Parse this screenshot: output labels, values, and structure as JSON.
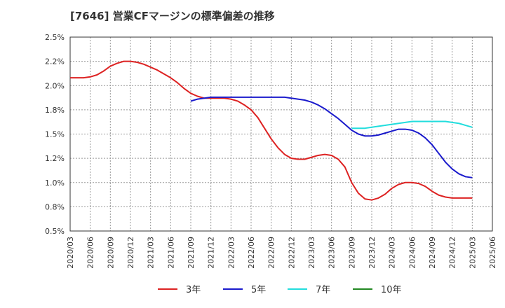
{
  "chart_data": {
    "type": "line",
    "title": "[7646]  営業CFマージンの標準偏差の推移",
    "xlabel": "",
    "ylabel": "",
    "ylim": [
      0.5,
      2.5
    ],
    "y_ticks": [
      0.5,
      0.75,
      1.0,
      1.25,
      1.5,
      1.75,
      2.0,
      2.25,
      2.5
    ],
    "y_tick_labels": [
      "0.5%",
      "0.8%",
      "1.0%",
      "1.2%",
      "1.5%",
      "1.8%",
      "2.0%",
      "2.2%",
      "2.5%"
    ],
    "x_tick_labels": [
      "2020/03",
      "2020/06",
      "2020/09",
      "2020/12",
      "2021/03",
      "2021/06",
      "2021/09",
      "2021/12",
      "2022/03",
      "2022/06",
      "2022/09",
      "2022/12",
      "2023/03",
      "2023/06",
      "2023/09",
      "2023/12",
      "2024/03",
      "2024/06",
      "2024/09",
      "2024/12",
      "2025/03",
      "2025/06"
    ],
    "grid": true,
    "legend_position": "bottom",
    "series": [
      {
        "name": "3年",
        "color": "#dd2222",
        "points": [
          [
            "2020/03",
            2.08
          ],
          [
            "2020/04",
            2.08
          ],
          [
            "2020/05",
            2.08
          ],
          [
            "2020/06",
            2.09
          ],
          [
            "2020/07",
            2.11
          ],
          [
            "2020/08",
            2.15
          ],
          [
            "2020/09",
            2.2
          ],
          [
            "2020/10",
            2.23
          ],
          [
            "2020/11",
            2.25
          ],
          [
            "2020/12",
            2.25
          ],
          [
            "2021/01",
            2.24
          ],
          [
            "2021/02",
            2.22
          ],
          [
            "2021/03",
            2.19
          ],
          [
            "2021/04",
            2.16
          ],
          [
            "2021/05",
            2.12
          ],
          [
            "2021/06",
            2.08
          ],
          [
            "2021/07",
            2.03
          ],
          [
            "2021/08",
            1.97
          ],
          [
            "2021/09",
            1.92
          ],
          [
            "2021/10",
            1.89
          ],
          [
            "2021/11",
            1.87
          ],
          [
            "2021/12",
            1.87
          ],
          [
            "2022/01",
            1.87
          ],
          [
            "2022/02",
            1.87
          ],
          [
            "2022/03",
            1.86
          ],
          [
            "2022/04",
            1.84
          ],
          [
            "2022/05",
            1.8
          ],
          [
            "2022/06",
            1.75
          ],
          [
            "2022/07",
            1.67
          ],
          [
            "2022/08",
            1.56
          ],
          [
            "2022/09",
            1.45
          ],
          [
            "2022/10",
            1.36
          ],
          [
            "2022/11",
            1.29
          ],
          [
            "2022/12",
            1.25
          ],
          [
            "2023/01",
            1.24
          ],
          [
            "2023/02",
            1.24
          ],
          [
            "2023/03",
            1.26
          ],
          [
            "2023/04",
            1.28
          ],
          [
            "2023/05",
            1.29
          ],
          [
            "2023/06",
            1.28
          ],
          [
            "2023/07",
            1.24
          ],
          [
            "2023/08",
            1.16
          ],
          [
            "2023/09",
            1.0
          ],
          [
            "2023/10",
            0.89
          ],
          [
            "2023/11",
            0.83
          ],
          [
            "2023/12",
            0.82
          ],
          [
            "2024/01",
            0.84
          ],
          [
            "2024/02",
            0.88
          ],
          [
            "2024/03",
            0.94
          ],
          [
            "2024/04",
            0.98
          ],
          [
            "2024/05",
            1.0
          ],
          [
            "2024/06",
            1.0
          ],
          [
            "2024/07",
            0.99
          ],
          [
            "2024/08",
            0.96
          ],
          [
            "2024/09",
            0.91
          ],
          [
            "2024/10",
            0.87
          ],
          [
            "2024/11",
            0.85
          ],
          [
            "2024/12",
            0.84
          ],
          [
            "2025/01",
            0.84
          ],
          [
            "2025/02",
            0.84
          ],
          [
            "2025/03",
            0.84
          ]
        ]
      },
      {
        "name": "5年",
        "color": "#1a1acc",
        "points": [
          [
            "2021/09",
            1.84
          ],
          [
            "2021/10",
            1.86
          ],
          [
            "2021/11",
            1.87
          ],
          [
            "2021/12",
            1.88
          ],
          [
            "2022/01",
            1.88
          ],
          [
            "2022/02",
            1.88
          ],
          [
            "2022/03",
            1.88
          ],
          [
            "2022/04",
            1.88
          ],
          [
            "2022/05",
            1.88
          ],
          [
            "2022/06",
            1.88
          ],
          [
            "2022/07",
            1.88
          ],
          [
            "2022/08",
            1.88
          ],
          [
            "2022/09",
            1.88
          ],
          [
            "2022/10",
            1.88
          ],
          [
            "2022/11",
            1.88
          ],
          [
            "2022/12",
            1.87
          ],
          [
            "2023/01",
            1.86
          ],
          [
            "2023/02",
            1.85
          ],
          [
            "2023/03",
            1.83
          ],
          [
            "2023/04",
            1.8
          ],
          [
            "2023/05",
            1.76
          ],
          [
            "2023/06",
            1.71
          ],
          [
            "2023/07",
            1.66
          ],
          [
            "2023/08",
            1.6
          ],
          [
            "2023/09",
            1.54
          ],
          [
            "2023/10",
            1.5
          ],
          [
            "2023/11",
            1.48
          ],
          [
            "2023/12",
            1.48
          ],
          [
            "2024/01",
            1.49
          ],
          [
            "2024/02",
            1.51
          ],
          [
            "2024/03",
            1.53
          ],
          [
            "2024/04",
            1.55
          ],
          [
            "2024/05",
            1.55
          ],
          [
            "2024/06",
            1.54
          ],
          [
            "2024/07",
            1.51
          ],
          [
            "2024/08",
            1.46
          ],
          [
            "2024/09",
            1.39
          ],
          [
            "2024/10",
            1.3
          ],
          [
            "2024/11",
            1.21
          ],
          [
            "2024/12",
            1.14
          ],
          [
            "2025/01",
            1.09
          ],
          [
            "2025/02",
            1.06
          ],
          [
            "2025/03",
            1.05
          ]
        ]
      },
      {
        "name": "7年",
        "color": "#22dddd",
        "points": [
          [
            "2023/09",
            1.56
          ],
          [
            "2023/10",
            1.56
          ],
          [
            "2023/11",
            1.56
          ],
          [
            "2023/12",
            1.57
          ],
          [
            "2024/01",
            1.58
          ],
          [
            "2024/02",
            1.59
          ],
          [
            "2024/03",
            1.6
          ],
          [
            "2024/04",
            1.61
          ],
          [
            "2024/05",
            1.62
          ],
          [
            "2024/06",
            1.63
          ],
          [
            "2024/07",
            1.63
          ],
          [
            "2024/08",
            1.63
          ],
          [
            "2024/09",
            1.63
          ],
          [
            "2024/10",
            1.63
          ],
          [
            "2024/11",
            1.63
          ],
          [
            "2024/12",
            1.62
          ],
          [
            "2025/01",
            1.61
          ],
          [
            "2025/02",
            1.59
          ],
          [
            "2025/03",
            1.57
          ]
        ]
      },
      {
        "name": "10年",
        "color": "#228822",
        "points": []
      }
    ]
  }
}
